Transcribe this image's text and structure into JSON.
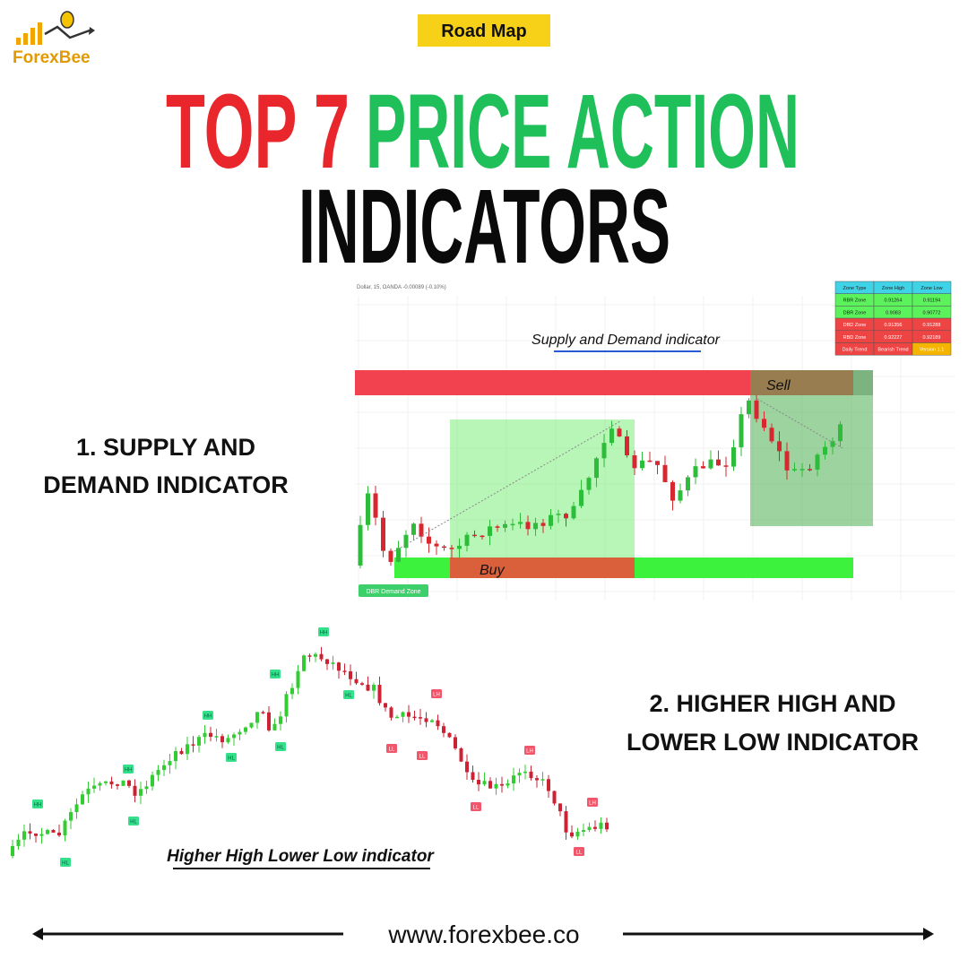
{
  "logo": {
    "text": "ForexBee"
  },
  "badge": "Road Map",
  "title": {
    "part1": "TOP 7",
    "part2": "PRICE ACTION",
    "line2": "INDICATORS"
  },
  "sections": [
    {
      "line1": "1. SUPPLY AND",
      "line2": "DEMAND INDICATOR"
    },
    {
      "line1": "2. HIGHER HIGH AND",
      "line2": "LOWER LOW INDICATOR"
    }
  ],
  "chart1": {
    "header": "Dollar, 15, OANDA  -0.00089 (-0.10%)",
    "caption": "Supply and Demand indicator",
    "sell": "Sell",
    "buy": "Buy",
    "zone_tag": "DBR Demand Zone",
    "table": {
      "header": [
        "Zone Type",
        "Zone High",
        "Zone Low"
      ],
      "rows": [
        [
          "RBR Zone",
          "0.91264",
          "0.91194"
        ],
        [
          "DBR Zone",
          "0.9083",
          "0.90772"
        ],
        [
          "DBD Zone",
          "0.91356",
          "0.91288"
        ],
        [
          "RBD Zone",
          "0.92227",
          "0.92189"
        ],
        [
          "Daily Trend",
          "Bearish Trend",
          "Version 1.1"
        ]
      ]
    }
  },
  "chart2": {
    "caption": "Higher High Lower Low indicator",
    "swing_labels": [
      "HH",
      "HL",
      "HH",
      "HL",
      "HH",
      "HL",
      "HH",
      "HL",
      "HH",
      "HL",
      "LL",
      "LL",
      "LH",
      "LL",
      "LH",
      "LL",
      "LH"
    ]
  },
  "footer": {
    "url": "www.forexbee.co"
  }
}
